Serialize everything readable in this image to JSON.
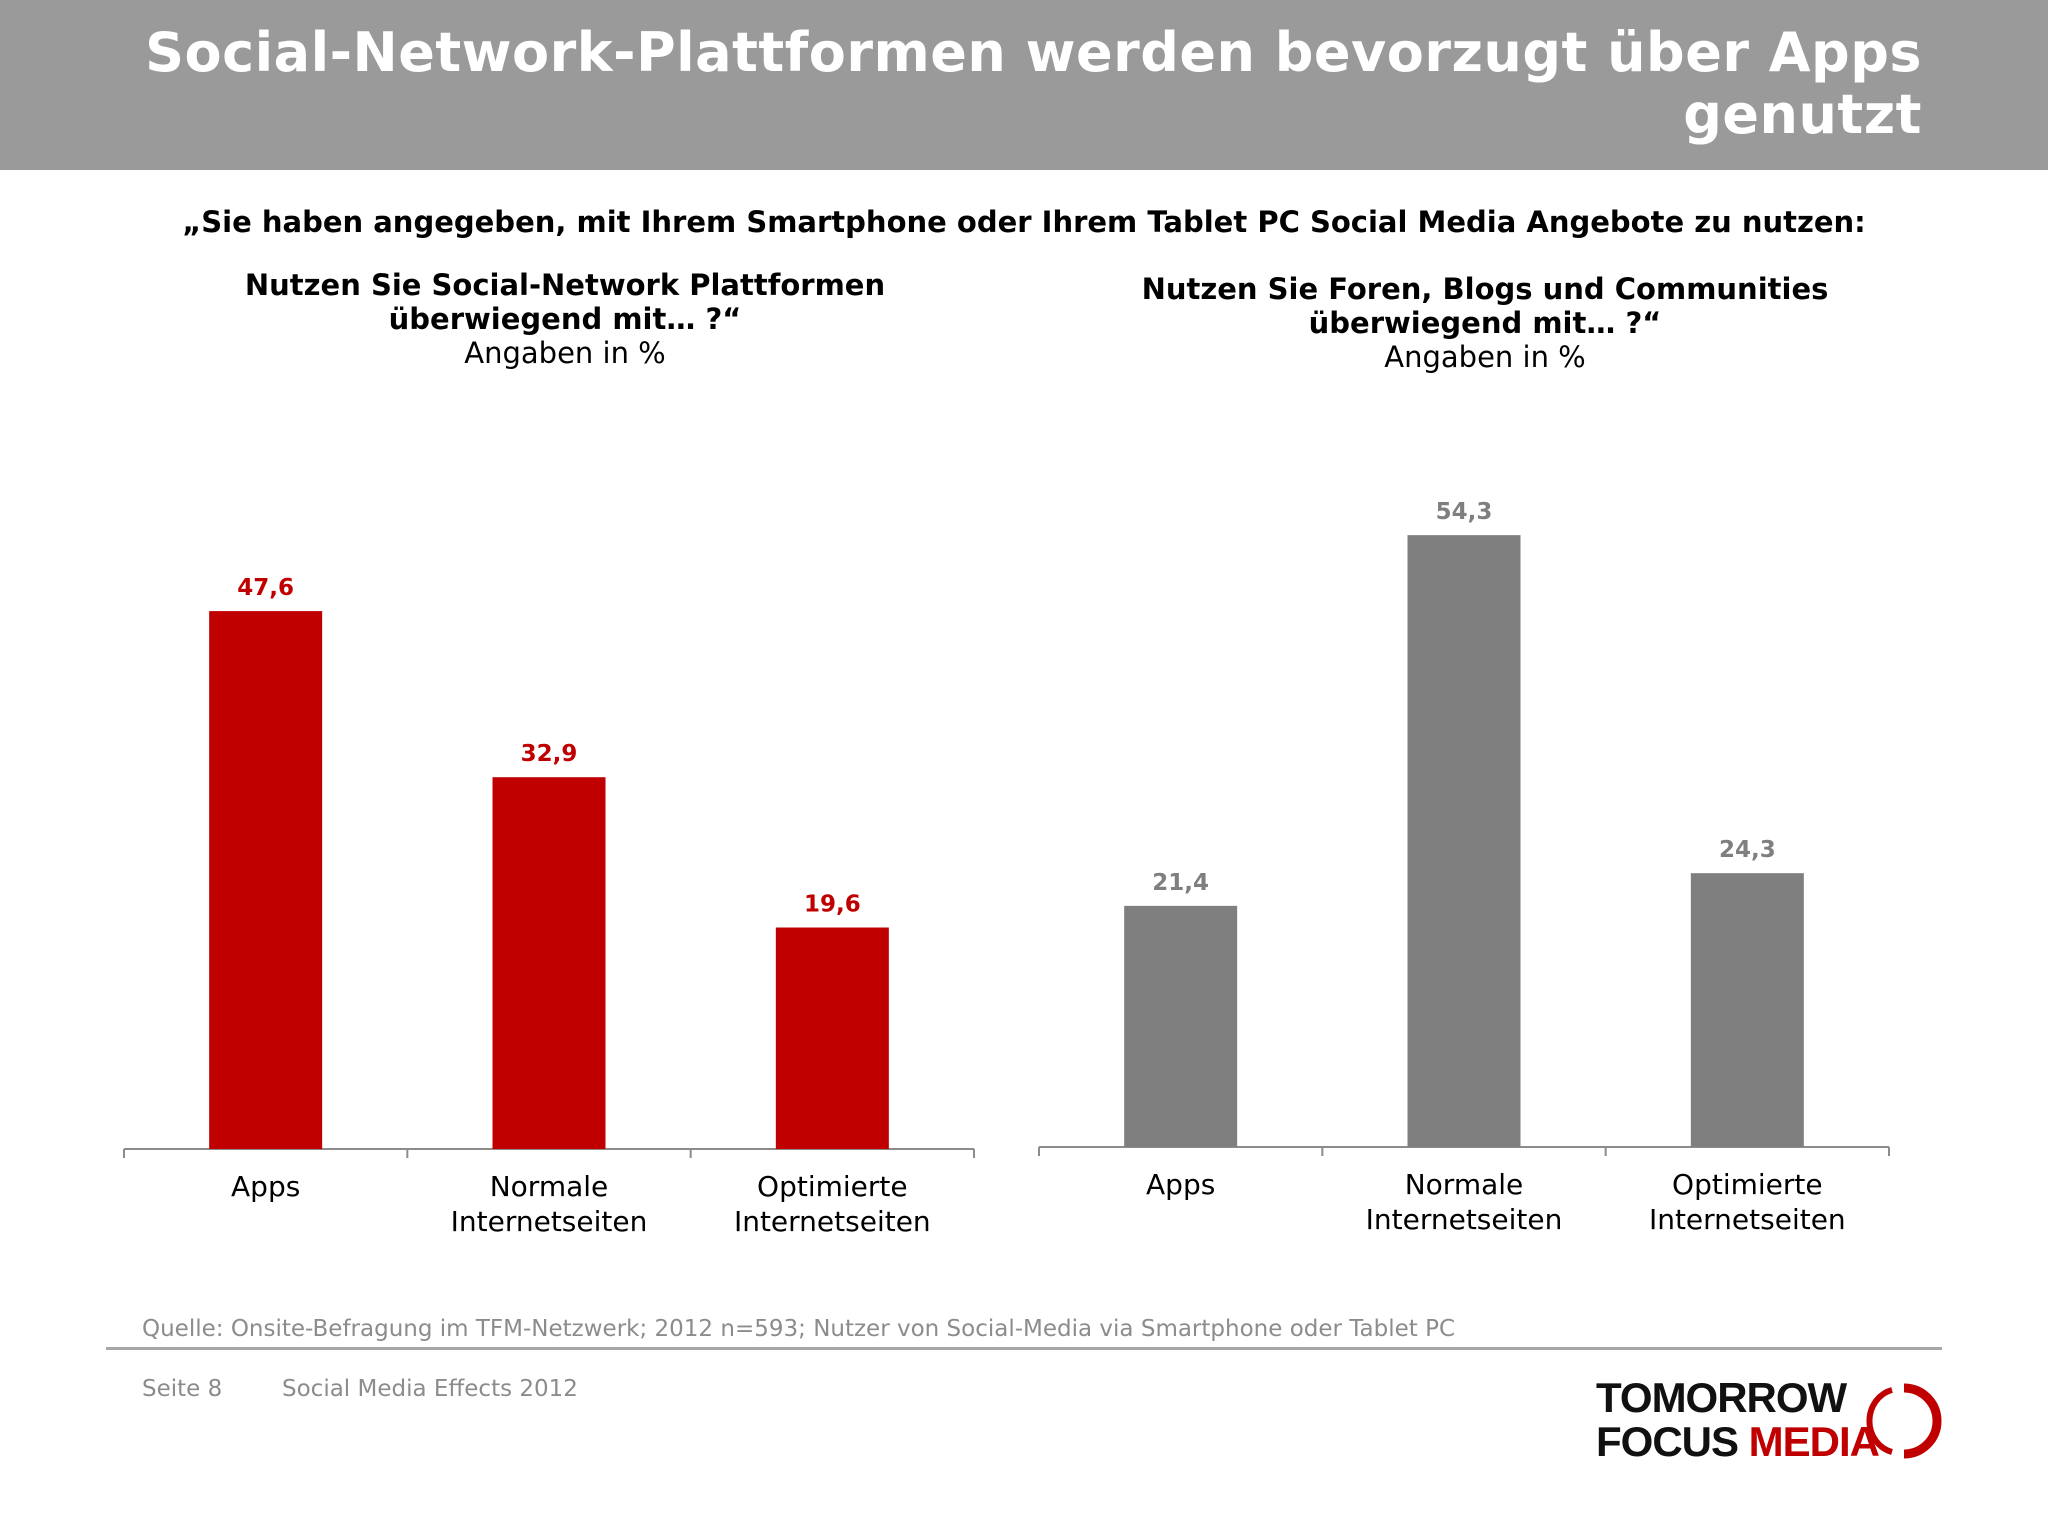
{
  "header": {
    "title": "Social-Network-Plattformen werden bevorzugt über Apps genutzt"
  },
  "question": "„Sie haben angegeben, mit Ihrem Smartphone oder Ihrem Tablet PC Social Media Angebote zu nutzen:",
  "colors": {
    "header_bg": "#9a9a9a",
    "series_left": "#c00000",
    "series_right": "#7f7f7f",
    "axis": "#8c8c8c"
  },
  "chart_data": [
    {
      "type": "bar",
      "title": "Nutzen Sie Social-Network Plattformen überwiegend mit… ?“",
      "title_lines": [
        "Nutzen Sie Social-Network Plattformen",
        "überwiegend mit… ?“"
      ],
      "subtitle": "Angaben in %",
      "categories": [
        "Apps",
        "Normale Internetseiten",
        "Optimierte Internetseiten"
      ],
      "category_lines": [
        [
          "Apps"
        ],
        [
          "Normale",
          "Internetseiten"
        ],
        [
          "Optimierte",
          "Internetseiten"
        ]
      ],
      "values": [
        47.6,
        32.9,
        19.6
      ],
      "value_labels": [
        "47,6",
        "32,9",
        "19,6"
      ],
      "ylim": [
        0,
        60
      ],
      "grid": false,
      "color": "#c00000"
    },
    {
      "type": "bar",
      "title": "Nutzen Sie Foren, Blogs und Communities überwiegend mit… ?“",
      "title_lines": [
        "Nutzen Sie Foren, Blogs und Communities",
        "überwiegend mit… ?“"
      ],
      "subtitle": "Angaben in %",
      "categories": [
        "Apps",
        "Normale Internetseiten",
        "Optimierte Internetseiten"
      ],
      "category_lines": [
        [
          "Apps"
        ],
        [
          "Normale",
          "Internetseiten"
        ],
        [
          "Optimierte",
          "Internetseiten"
        ]
      ],
      "values": [
        21.4,
        54.3,
        24.3
      ],
      "value_labels": [
        "21,4",
        "54,3",
        "24,3"
      ],
      "ylim": [
        0,
        60
      ],
      "grid": false,
      "color": "#7f7f7f"
    }
  ],
  "footer": {
    "source": "Quelle: Onsite-Befragung im TFM-Netzwerk; 2012 n=593; Nutzer von Social-Media via Smartphone oder Tablet PC",
    "page": "Seite 8",
    "report": "Social Media Effects 2012"
  },
  "logo": {
    "line1": "TOMORROW",
    "line2a": "FOCUS",
    "line2b": "MEDIA"
  }
}
